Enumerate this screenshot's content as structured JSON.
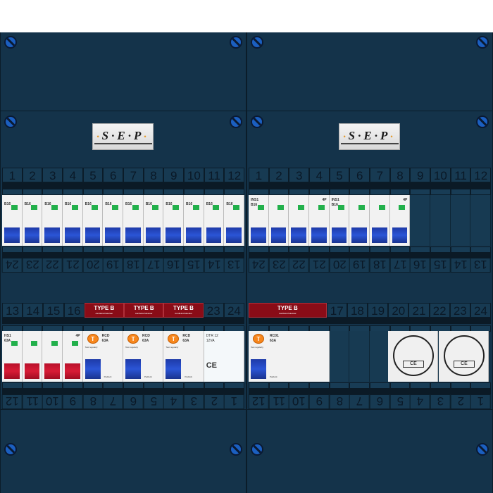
{
  "logo_text": "SEP",
  "rows": {
    "top_numbers": [
      "1",
      "2",
      "3",
      "4",
      "5",
      "6",
      "7",
      "8",
      "9",
      "10",
      "11",
      "12"
    ],
    "top_numbers_reversed": [
      "24",
      "23",
      "22",
      "21",
      "20",
      "19",
      "18",
      "17",
      "16",
      "15",
      "14",
      "13"
    ],
    "bottom_left_numbers": [
      "13",
      "14",
      "15",
      "16",
      "TYPE B",
      "TYPE B",
      "TYPE B",
      "23",
      "24"
    ],
    "bottom_right_numbers": [
      "TYPE B",
      "17",
      "18",
      "19",
      "20",
      "21",
      "22",
      "23",
      "24"
    ],
    "bottom_numbers_reversed": [
      "12",
      "11",
      "10",
      "9",
      "8",
      "7",
      "6",
      "5",
      "4",
      "3",
      "2",
      "1"
    ]
  },
  "type_b": {
    "label": "TYPE B",
    "sub": "Aardlekschakelaar"
  },
  "breakers": {
    "label": "B16",
    "count": 12,
    "led_color": "#22b04b",
    "handle_color": "#1e3aa8"
  },
  "isolators": [
    {
      "label": "INS1",
      "rating": "B16",
      "poles": "4P"
    },
    {
      "label": "INS1",
      "rating": "B16",
      "poles": "4P"
    }
  ],
  "main_switch": {
    "label": "HS1",
    "rating": "63A",
    "poles": "4P",
    "handle_color": "#d81b35"
  },
  "rcbos": [
    {
      "label": "RCD",
      "rating": "63A",
      "test": "T",
      "test_text": "Test regularly",
      "lock": "Padlock"
    },
    {
      "label": "RCD",
      "rating": "63A",
      "test": "T",
      "test_text": "Test regularly",
      "lock": "Padlock"
    },
    {
      "label": "RCD",
      "rating": "63A",
      "test": "T",
      "test_text": "Test regularly",
      "lock": "Padlock"
    }
  ],
  "rcd_right": {
    "label": "RC01",
    "rating": "63A",
    "test": "T",
    "test_text": "Test regularly",
    "lock": "Padlock"
  },
  "bell_transformer": {
    "label": "DTR 12",
    "rating": "12VA",
    "mark": "CE"
  },
  "sockets": [
    {
      "mark": "CE"
    },
    {
      "mark": "CE"
    }
  ],
  "colors": {
    "board": "#14334a",
    "type_b": "#8a0c17",
    "screw": "#1b5fc0",
    "test_button": "#f7861c"
  }
}
